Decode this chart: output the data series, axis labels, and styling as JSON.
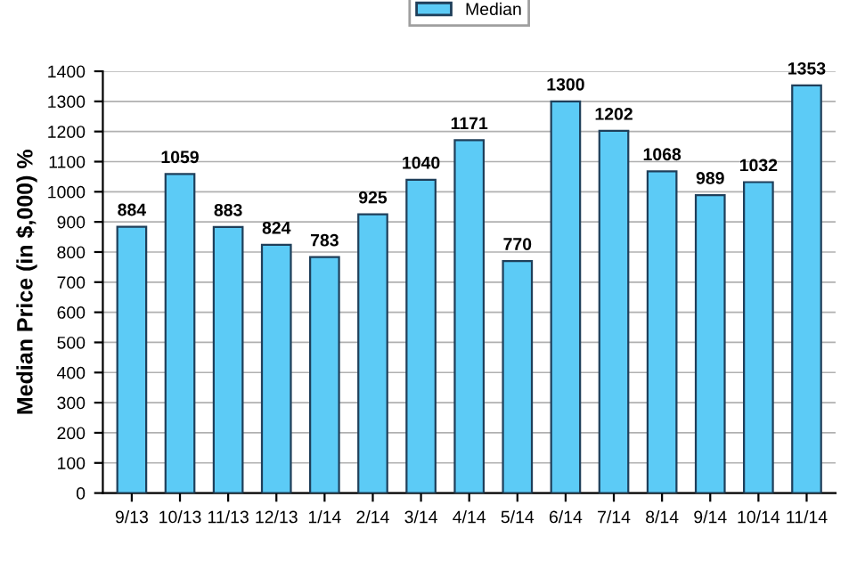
{
  "chart_data": {
    "type": "bar",
    "ylabel": "Median Price (in $,000) %",
    "categories": [
      "9/13",
      "10/13",
      "11/13",
      "12/13",
      "1/14",
      "2/14",
      "3/14",
      "4/14",
      "5/14",
      "6/14",
      "7/14",
      "8/14",
      "9/14",
      "10/14",
      "11/14"
    ],
    "series": [
      {
        "name": "Median",
        "color": "#5ccbf6",
        "values": [
          884,
          1059,
          883,
          824,
          783,
          925,
          1040,
          1171,
          770,
          1300,
          1202,
          1068,
          989,
          1032,
          1353
        ]
      }
    ],
    "ylim": [
      0,
      1400
    ],
    "yticks": [
      0,
      100,
      200,
      300,
      400,
      500,
      600,
      700,
      800,
      900,
      1000,
      1100,
      1200,
      1300,
      1400
    ],
    "grid": "y",
    "legend": "top",
    "data_labels": true
  }
}
